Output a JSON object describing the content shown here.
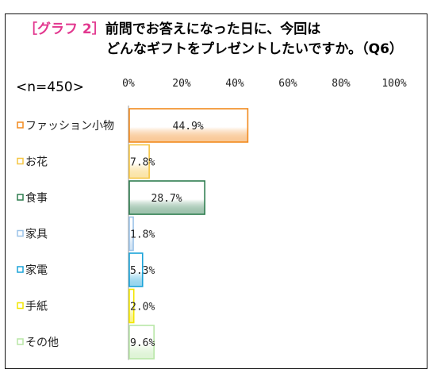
{
  "chart_data": {
    "type": "bar",
    "orientation": "horizontal",
    "title_tag": "［グラフ 2］",
    "title_line1": "前問でお答えになった日に、今回は",
    "title_line2": "どんなギフトをプレゼントしたいですか。（Q6）",
    "sample_size": "<n=450>",
    "xlim": [
      0,
      100
    ],
    "ticks": [
      {
        "value": 0,
        "label": "0%"
      },
      {
        "value": 20,
        "label": "20%"
      },
      {
        "value": 40,
        "label": "40%"
      },
      {
        "value": 60,
        "label": "60%"
      },
      {
        "value": 80,
        "label": "80%"
      },
      {
        "value": 100,
        "label": "100%"
      }
    ],
    "categories": [
      "ファッション小物",
      "お花",
      "食事",
      "家具",
      "家電",
      "手紙",
      "その他"
    ],
    "values": [
      44.9,
      7.8,
      28.7,
      1.8,
      5.3,
      2.0,
      9.6
    ],
    "value_labels": [
      "44.9%",
      "7.8%",
      "28.7%",
      "1.8%",
      "5.3%",
      "2.0%",
      "9.6%"
    ],
    "colors": [
      "#f28a1e",
      "#f5c542",
      "#2e7d4f",
      "#9cc3e8",
      "#1aa3d9",
      "#f2e600",
      "#b8e6a6"
    ],
    "grid": false,
    "legend": "none"
  }
}
